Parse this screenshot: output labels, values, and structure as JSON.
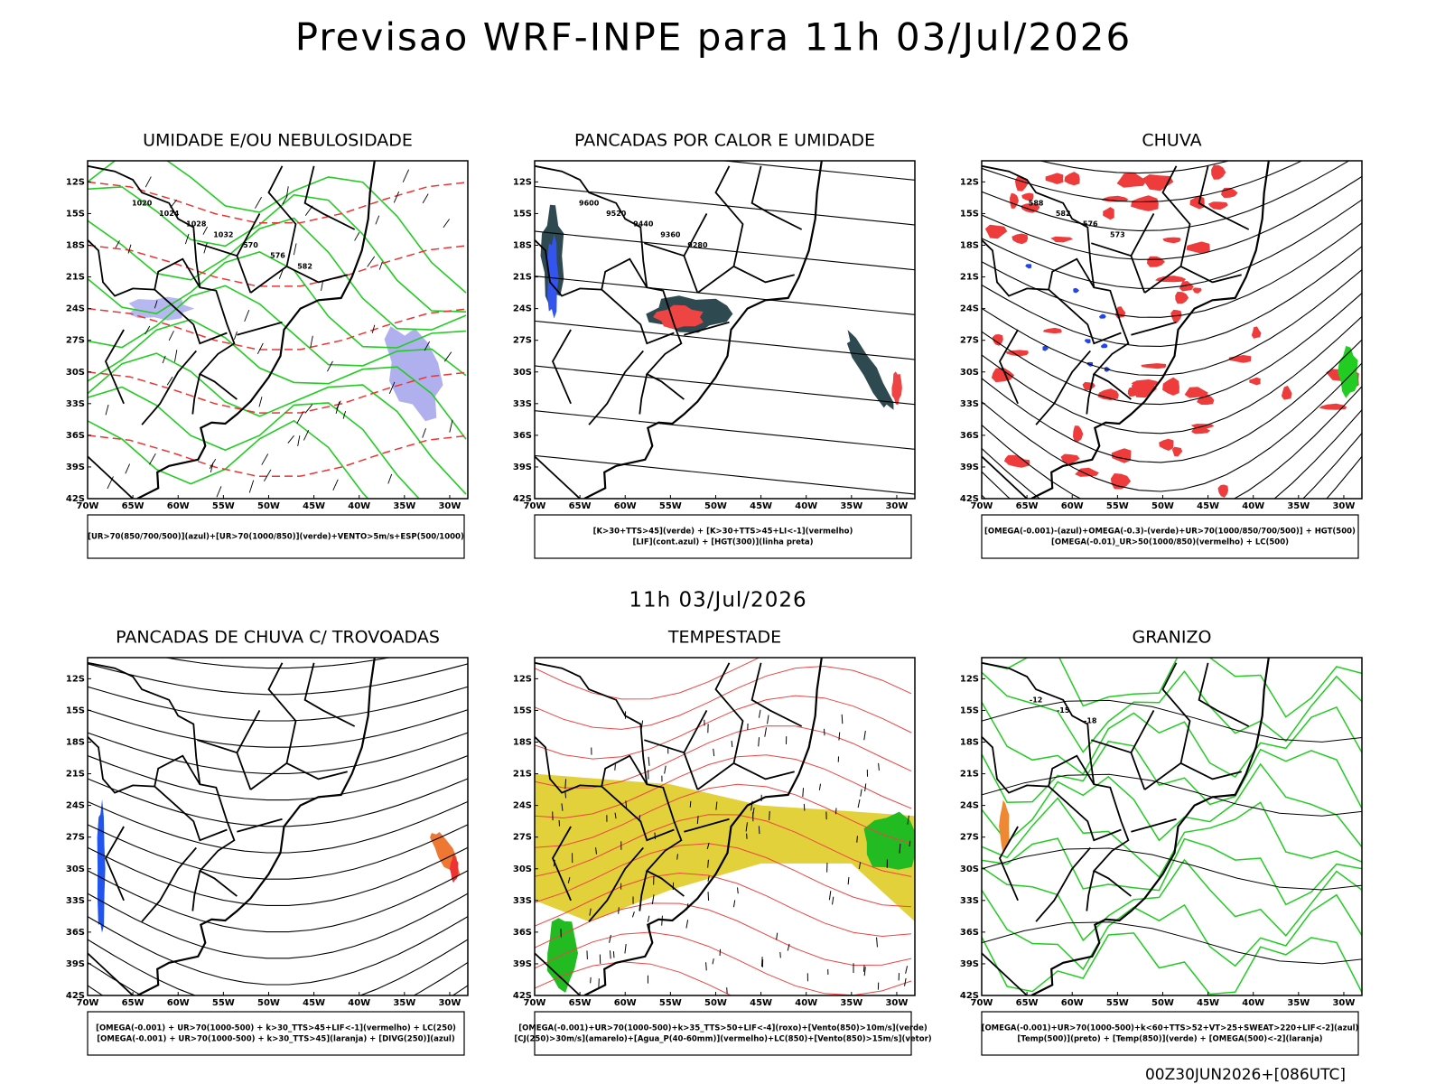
{
  "header": {
    "title": "Previsao WRF-INPE  para 11h 03/Jul/2026"
  },
  "subtitle": "11h 03/Jul/2026",
  "footer": "00Z30JUN2026+[086UTC]",
  "axes": {
    "lat_labels": [
      "12S",
      "15S",
      "18S",
      "21S",
      "24S",
      "27S",
      "30S",
      "33S",
      "36S",
      "39S",
      "42S"
    ],
    "lon_labels": [
      "70W",
      "65W",
      "60W",
      "55W",
      "50W",
      "45W",
      "40W",
      "35W",
      "30W"
    ]
  },
  "panels": [
    {
      "title": "UMIDADE E/OU NEBULOSIDADE",
      "legend": [
        "[UR>70(850/700/500)](azul)+[UR>70(1000/850)](verde)+VENTO>5m/s+ESP(500/1000)"
      ],
      "contour_labels": [
        "1020",
        "1024",
        "1028",
        "1032",
        "570",
        "576",
        "582"
      ]
    },
    {
      "title": "PANCADAS POR CALOR E UMIDADE",
      "legend": [
        "[K>30+TTS>45](verde)  +  [K>30+TTS>45+LI<-1](vermelho)",
        "[LIF](cont.azul)  +  [HGT(300)](linha preta)"
      ],
      "contour_labels": [
        "9600",
        "9520",
        "9440",
        "9360",
        "9280"
      ]
    },
    {
      "title": "CHUVA",
      "legend": [
        "[OMEGA(-0.001)-(azul)+OMEGA(-0.3)-(verde)+UR>70(1000/850/700/500)]  +  HGT(500)",
        "[OMEGA(-0.01)_UR>50(1000/850)(vermelho)  +  LC(500)"
      ],
      "contour_labels": [
        "588",
        "582",
        "576",
        "573"
      ]
    },
    {
      "title": "PANCADAS DE CHUVA C/ TROVOADAS",
      "legend": [
        "[OMEGA(-0.001)  +  UR>70(1000-500)  +  k>30_TTS>45+LIF<-1](vermelho)  +  LC(250)",
        "[OMEGA(-0.001)  +  UR>70(1000-500)  +  k>30_TTS>45](laranja)  +  [DIVG(250)](azul)"
      ],
      "contour_labels": []
    },
    {
      "title": "TEMPESTADE",
      "legend": [
        "[OMEGA(-0.001)+UR>70(1000-500)+k>35_TTS>50+LIF<-4](roxo)+[Vento(850)>10m/s](verde)",
        "[CJ(250)>30m/s](amarelo)+[Agua_P(40-60mm)](vermelho)+LC(850)+[Vento(850)>15m/s](vetor)"
      ],
      "contour_labels": []
    },
    {
      "title": "GRANIZO",
      "legend": [
        "[OMEGA(-0.001)+UR>70(1000-500)+k<60+TTS>52+VT>25+SWEAT>220+LIF<-2](azul)",
        "[Temp(500)](preto)  +  [Temp(850)](verde)  +  [OMEGA(500)<-2](laranja)"
      ],
      "contour_labels": [
        "-12",
        "-15",
        "-18"
      ]
    }
  ]
}
